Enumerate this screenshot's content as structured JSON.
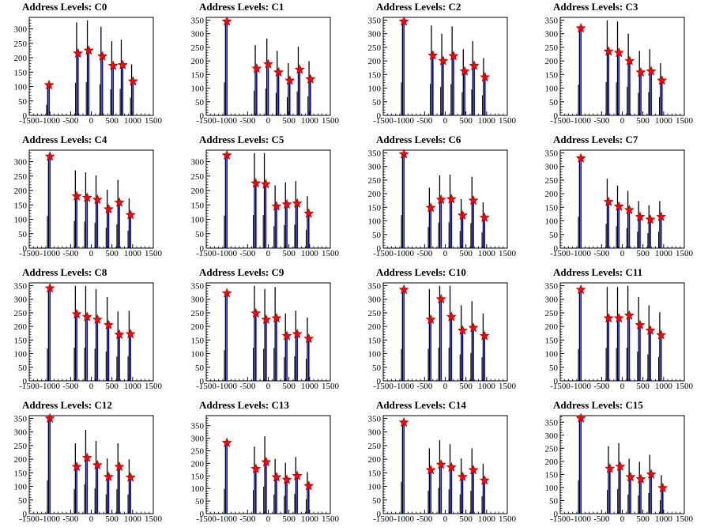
{
  "chart_data": [
    {
      "type": "bar",
      "title": "Address Levels: C0",
      "xlim": [
        -1500,
        1500
      ],
      "ylim": [
        0,
        340
      ],
      "yticks": [
        0,
        50,
        100,
        150,
        200,
        250,
        300
      ],
      "xticks": [
        -1500,
        -1000,
        -500,
        0,
        500,
        1000,
        1500
      ],
      "xtick_labels": [
        "-1500",
        "-1000",
        "-500",
        "0",
        "500",
        "1000",
        "1500"
      ],
      "markers": [
        [
          -1020,
          105
        ],
        [
          -320,
          215
        ],
        [
          -60,
          225
        ],
        [
          270,
          205
        ],
        [
          530,
          172
        ],
        [
          760,
          175
        ],
        [
          1010,
          118
        ]
      ]
    },
    {
      "type": "bar",
      "title": "Address Levels: C1",
      "xlim": [
        -1500,
        1500
      ],
      "ylim": [
        0,
        360
      ],
      "yticks": [
        0,
        50,
        100,
        150,
        200,
        250,
        300,
        350
      ],
      "xticks": [
        -1500,
        -1000,
        -500,
        0,
        500,
        1000,
        1500
      ],
      "xtick_labels": [
        "-1500",
        "-1000",
        "-500",
        "0",
        "500",
        "1000",
        "1500"
      ],
      "markers": [
        [
          -1000,
          345
        ],
        [
          -280,
          172
        ],
        [
          0,
          188
        ],
        [
          250,
          158
        ],
        [
          520,
          128
        ],
        [
          760,
          168
        ],
        [
          1020,
          133
        ]
      ]
    },
    {
      "type": "bar",
      "title": "Address Levels: C2",
      "xlim": [
        -1500,
        1500
      ],
      "ylim": [
        0,
        360
      ],
      "yticks": [
        0,
        50,
        100,
        150,
        200,
        250,
        300,
        350
      ],
      "xticks": [
        -1500,
        -1000,
        -500,
        0,
        500,
        1000,
        1500
      ],
      "xtick_labels": [
        "-1500",
        "-1000",
        "-500",
        "0",
        "500",
        "1000",
        "1500"
      ],
      "markers": [
        [
          -1000,
          345
        ],
        [
          -300,
          220
        ],
        [
          -50,
          200
        ],
        [
          200,
          218
        ],
        [
          470,
          162
        ],
        [
          700,
          182
        ],
        [
          960,
          140
        ]
      ]
    },
    {
      "type": "bar",
      "title": "Address Levels: C3",
      "xlim": [
        -1500,
        1500
      ],
      "ylim": [
        0,
        360
      ],
      "yticks": [
        0,
        50,
        100,
        150,
        200,
        250,
        300,
        350
      ],
      "xticks": [
        -1500,
        -1000,
        -500,
        0,
        500,
        1000,
        1500
      ],
      "xtick_labels": [
        "-1500",
        "-1000",
        "-500",
        "0",
        "500",
        "1000",
        "1500"
      ],
      "markers": [
        [
          -1000,
          320
        ],
        [
          -330,
          235
        ],
        [
          -80,
          230
        ],
        [
          180,
          200
        ],
        [
          450,
          158
        ],
        [
          700,
          162
        ],
        [
          960,
          128
        ]
      ]
    },
    {
      "type": "bar",
      "title": "Address Levels: C4",
      "xlim": [
        -1500,
        1500
      ],
      "ylim": [
        0,
        340
      ],
      "yticks": [
        0,
        50,
        100,
        150,
        200,
        250,
        300
      ],
      "xticks": [
        -1500,
        -1000,
        -500,
        0,
        500,
        1000,
        1500
      ],
      "xtick_labels": [
        "-1500",
        "-1000",
        "-500",
        "0",
        "500",
        "1000",
        "1500"
      ],
      "markers": [
        [
          -1000,
          318
        ],
        [
          -350,
          180
        ],
        [
          -100,
          175
        ],
        [
          150,
          168
        ],
        [
          420,
          135
        ],
        [
          680,
          158
        ],
        [
          950,
          115
        ]
      ]
    },
    {
      "type": "bar",
      "title": "Address Levels: C5",
      "xlim": [
        -1500,
        1500
      ],
      "ylim": [
        0,
        340
      ],
      "yticks": [
        0,
        50,
        100,
        150,
        200,
        250,
        300
      ],
      "xticks": [
        -1500,
        -1000,
        -500,
        0,
        500,
        1000,
        1500
      ],
      "xtick_labels": [
        "-1500",
        "-1000",
        "-500",
        "0",
        "500",
        "1000",
        "1500"
      ],
      "markers": [
        [
          -1000,
          322
        ],
        [
          -300,
          225
        ],
        [
          -60,
          222
        ],
        [
          200,
          145
        ],
        [
          450,
          152
        ],
        [
          700,
          155
        ],
        [
          980,
          120
        ]
      ]
    },
    {
      "type": "bar",
      "title": "Address Levels: C6",
      "xlim": [
        -1500,
        1500
      ],
      "ylim": [
        0,
        360
      ],
      "yticks": [
        0,
        50,
        100,
        150,
        200,
        250,
        300,
        350
      ],
      "xticks": [
        -1500,
        -1000,
        -500,
        0,
        500,
        1000,
        1500
      ],
      "xtick_labels": [
        "-1500",
        "-1000",
        "-500",
        "0",
        "500",
        "1000",
        "1500"
      ],
      "markers": [
        [
          -1000,
          345
        ],
        [
          -350,
          148
        ],
        [
          -100,
          178
        ],
        [
          150,
          180
        ],
        [
          420,
          120
        ],
        [
          680,
          175
        ],
        [
          950,
          112
        ]
      ]
    },
    {
      "type": "bar",
      "title": "Address Levels: C7",
      "xlim": [
        -1500,
        1500
      ],
      "ylim": [
        0,
        360
      ],
      "yticks": [
        0,
        50,
        100,
        150,
        200,
        250,
        300,
        350
      ],
      "xticks": [
        -1500,
        -1000,
        -500,
        0,
        500,
        1000,
        1500
      ],
      "xtick_labels": [
        "-1500",
        "-1000",
        "-500",
        "0",
        "500",
        "1000",
        "1500"
      ],
      "markers": [
        [
          -1000,
          330
        ],
        [
          -330,
          170
        ],
        [
          -80,
          153
        ],
        [
          170,
          140
        ],
        [
          430,
          115
        ],
        [
          680,
          105
        ],
        [
          940,
          115
        ]
      ]
    },
    {
      "type": "bar",
      "title": "Address Levels: C8",
      "xlim": [
        -1500,
        1500
      ],
      "ylim": [
        0,
        360
      ],
      "yticks": [
        0,
        50,
        100,
        150,
        200,
        250,
        300,
        350
      ],
      "xticks": [
        -1500,
        -1000,
        -500,
        0,
        500,
        1000,
        1500
      ],
      "xtick_labels": [
        "-1500",
        "-1000",
        "-500",
        "0",
        "500",
        "1000",
        "1500"
      ],
      "markers": [
        [
          -1000,
          340
        ],
        [
          -350,
          245
        ],
        [
          -100,
          235
        ],
        [
          150,
          225
        ],
        [
          420,
          205
        ],
        [
          680,
          170
        ],
        [
          950,
          172
        ]
      ]
    },
    {
      "type": "bar",
      "title": "Address Levels: C9",
      "xlim": [
        -1500,
        1500
      ],
      "ylim": [
        0,
        360
      ],
      "yticks": [
        0,
        50,
        100,
        150,
        200,
        250,
        300,
        350
      ],
      "xticks": [
        -1500,
        -1000,
        -500,
        0,
        500,
        1000,
        1500
      ],
      "xtick_labels": [
        "-1500",
        "-1000",
        "-500",
        "0",
        "500",
        "1000",
        "1500"
      ],
      "markers": [
        [
          -1000,
          322
        ],
        [
          -300,
          248
        ],
        [
          -50,
          225
        ],
        [
          200,
          230
        ],
        [
          450,
          165
        ],
        [
          700,
          172
        ],
        [
          980,
          155
        ]
      ]
    },
    {
      "type": "bar",
      "title": "Address Levels: C10",
      "xlim": [
        -1500,
        1500
      ],
      "ylim": [
        0,
        360
      ],
      "yticks": [
        0,
        50,
        100,
        150,
        200,
        250,
        300,
        350
      ],
      "xticks": [
        -1500,
        -1000,
        -500,
        0,
        500,
        1000,
        1500
      ],
      "xtick_labels": [
        "-1500",
        "-1000",
        "-500",
        "0",
        "500",
        "1000",
        "1500"
      ],
      "markers": [
        [
          -1000,
          335
        ],
        [
          -350,
          225
        ],
        [
          -100,
          300
        ],
        [
          150,
          235
        ],
        [
          420,
          185
        ],
        [
          680,
          195
        ],
        [
          950,
          165
        ]
      ]
    },
    {
      "type": "bar",
      "title": "Address Levels: C11",
      "xlim": [
        -1500,
        1500
      ],
      "ylim": [
        0,
        360
      ],
      "yticks": [
        0,
        50,
        100,
        150,
        200,
        250,
        300,
        350
      ],
      "xticks": [
        -1500,
        -1000,
        -500,
        0,
        500,
        1000,
        1500
      ],
      "xtick_labels": [
        "-1500",
        "-1000",
        "-500",
        "0",
        "500",
        "1000",
        "1500"
      ],
      "markers": [
        [
          -1000,
          335
        ],
        [
          -330,
          230
        ],
        [
          -80,
          230
        ],
        [
          170,
          240
        ],
        [
          430,
          205
        ],
        [
          680,
          185
        ],
        [
          940,
          168
        ]
      ]
    },
    {
      "type": "bar",
      "title": "Address Levels: C12",
      "xlim": [
        -1500,
        1500
      ],
      "ylim": [
        0,
        360
      ],
      "yticks": [
        0,
        50,
        100,
        150,
        200,
        250,
        300,
        350
      ],
      "xticks": [
        -1500,
        -1000,
        -500,
        0,
        500,
        1000,
        1500
      ],
      "xtick_labels": [
        "-1500",
        "-1000",
        "-500",
        "0",
        "500",
        "1000",
        "1500"
      ],
      "markers": [
        [
          -1000,
          350
        ],
        [
          -350,
          172
        ],
        [
          -100,
          205
        ],
        [
          150,
          178
        ],
        [
          420,
          135
        ],
        [
          680,
          172
        ],
        [
          950,
          133
        ]
      ]
    },
    {
      "type": "bar",
      "title": "Address Levels: C13",
      "xlim": [
        -1500,
        1500
      ],
      "ylim": [
        0,
        390
      ],
      "yticks": [
        0,
        50,
        100,
        150,
        200,
        250,
        300,
        350
      ],
      "xticks": [
        -1500,
        -1000,
        -500,
        0,
        500,
        1000,
        1500
      ],
      "xtick_labels": [
        "-1500",
        "-1000",
        "-500",
        "0",
        "500",
        "1000",
        "1500"
      ],
      "markers": [
        [
          -1000,
          282
        ],
        [
          -300,
          178
        ],
        [
          -50,
          205
        ],
        [
          200,
          145
        ],
        [
          450,
          135
        ],
        [
          700,
          150
        ],
        [
          980,
          110
        ]
      ]
    },
    {
      "type": "bar",
      "title": "Address Levels: C14",
      "xlim": [
        -1500,
        1500
      ],
      "ylim": [
        0,
        360
      ],
      "yticks": [
        0,
        50,
        100,
        150,
        200,
        250,
        300,
        350
      ],
      "xticks": [
        -1500,
        -1000,
        -500,
        0,
        500,
        1000,
        1500
      ],
      "xtick_labels": [
        "-1500",
        "-1000",
        "-500",
        "0",
        "500",
        "1000",
        "1500"
      ],
      "markers": [
        [
          -1000,
          335
        ],
        [
          -350,
          160
        ],
        [
          -100,
          180
        ],
        [
          150,
          170
        ],
        [
          420,
          135
        ],
        [
          680,
          160
        ],
        [
          950,
          122
        ]
      ]
    },
    {
      "type": "bar",
      "title": "Address Levels: C15",
      "xlim": [
        -1500,
        1500
      ],
      "ylim": [
        0,
        375
      ],
      "yticks": [
        0,
        50,
        100,
        150,
        200,
        250,
        300,
        350
      ],
      "xticks": [
        -1500,
        -1000,
        -500,
        0,
        500,
        1000,
        1500
      ],
      "xtick_labels": [
        "-1500",
        "-1000",
        "-500",
        "0",
        "500",
        "1000",
        "1500"
      ],
      "markers": [
        [
          -1000,
          365
        ],
        [
          -300,
          172
        ],
        [
          -50,
          180
        ],
        [
          200,
          140
        ],
        [
          450,
          132
        ],
        [
          700,
          150
        ],
        [
          980,
          98
        ]
      ]
    }
  ],
  "colors": {
    "hist_black": "#000000",
    "hist_blue": "#0000cc",
    "marker": "#ff0000",
    "marker_edge": "#990000"
  }
}
